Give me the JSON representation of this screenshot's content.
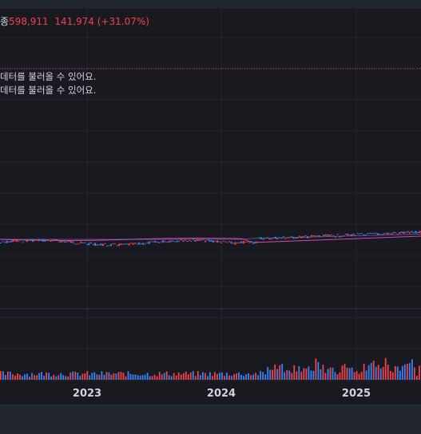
{
  "legend": {
    "title_fragment": "종",
    "price": "598,911",
    "change": "141,974 (+31.07%)"
  },
  "messages": [
    "데터를 불러올 수 있어요.",
    "데터를 불러올 수 있어요."
  ],
  "x_axis": {
    "labels": [
      "2023",
      "2024",
      "2025"
    ]
  },
  "colors": {
    "up": "#f0424f",
    "down": "#3b82f6",
    "grid": "#24262e",
    "ma": "#d946a8"
  }
}
